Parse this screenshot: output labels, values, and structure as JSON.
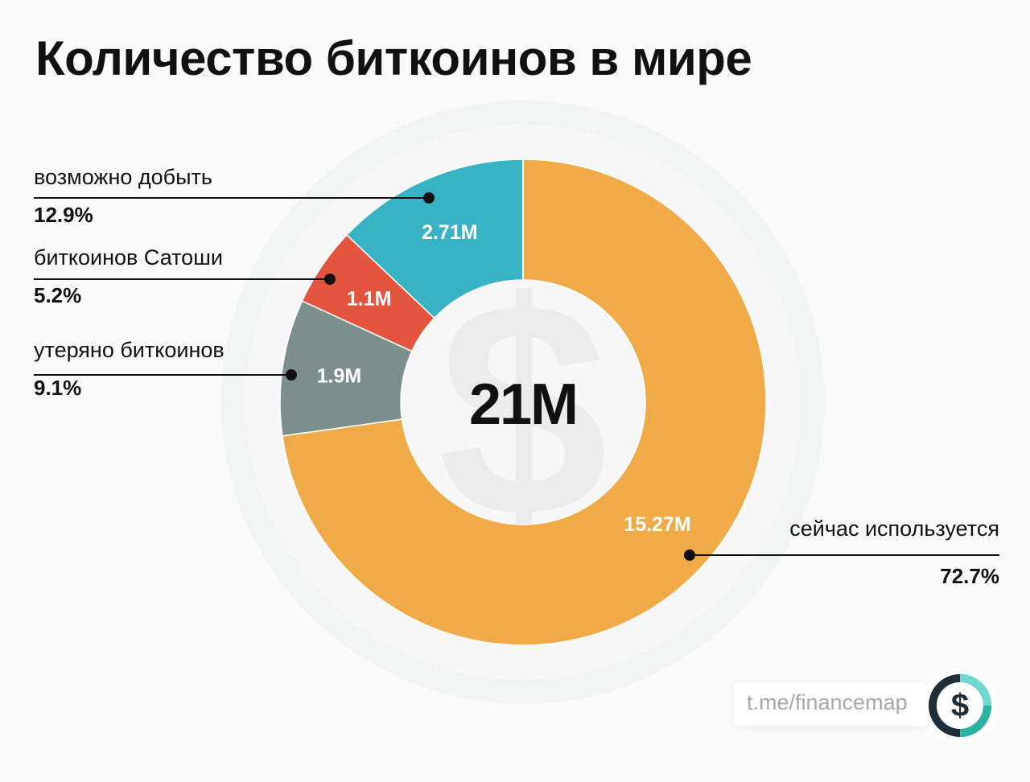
{
  "title": "Количество биткоинов в мире",
  "center_total": "21M",
  "brand": {
    "text": "t.me/financemap",
    "icon": "dollar-circle-icon"
  },
  "colors": {
    "available": "#38b3c3",
    "satoshi": "#e4553f",
    "lost": "#7c8f8c",
    "used": "#f0ab48",
    "text": "#111111"
  },
  "chart_data": {
    "type": "pie",
    "donut": true,
    "total": "21M",
    "slices": [
      {
        "label": "возможно добыть",
        "value": 2.71,
        "value_label": "2.71M",
        "percent_label": "12.9%",
        "color": "#38b3c3"
      },
      {
        "label": "биткоинов Сатоши",
        "value": 1.1,
        "value_label": "1.1M",
        "percent_label": "5.2%",
        "color": "#e4553f"
      },
      {
        "label": "утеряно биткоинов",
        "value": 1.9,
        "value_label": "1.9M",
        "percent_label": "9.1%",
        "color": "#7c8f8c"
      },
      {
        "label": "сейчас используется",
        "value": 15.27,
        "value_label": "15.27M",
        "percent_label": "72.7%",
        "color": "#f0ab48"
      }
    ]
  }
}
